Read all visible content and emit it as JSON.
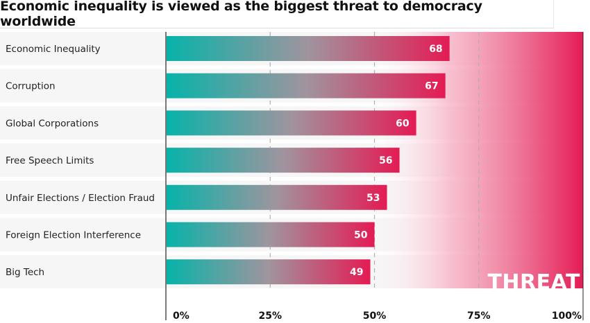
{
  "title": "Economic inequality is viewed as the biggest threat to democracy worldwide",
  "threat_label": "THREAT",
  "colors": {
    "bar_start": "#06b3a9",
    "bar_mid": "#a0949e",
    "bar_end": "#e41b54",
    "background_end": "#e41b54",
    "row_band": "#f6f6f6",
    "grid": "#b0b0b0"
  },
  "chart_data": {
    "type": "bar",
    "orientation": "horizontal",
    "categories": [
      "Economic Inequality",
      "Corruption",
      "Global Corporations",
      "Free Speech Limits",
      "Unfair Elections / Election Fraud",
      "Foreign Election Interference",
      "Big Tech"
    ],
    "values": [
      68,
      67,
      60,
      56,
      53,
      50,
      49
    ],
    "xlim": [
      0,
      100
    ],
    "x_ticks": [
      {
        "value": 0,
        "label": "0%"
      },
      {
        "value": 25,
        "label": "25%"
      },
      {
        "value": 50,
        "label": "50%"
      },
      {
        "value": 75,
        "label": "75%"
      },
      {
        "value": 100,
        "label": "100%"
      }
    ],
    "grid": "vertical dashed at 25, 50, 75",
    "legend": "none"
  }
}
